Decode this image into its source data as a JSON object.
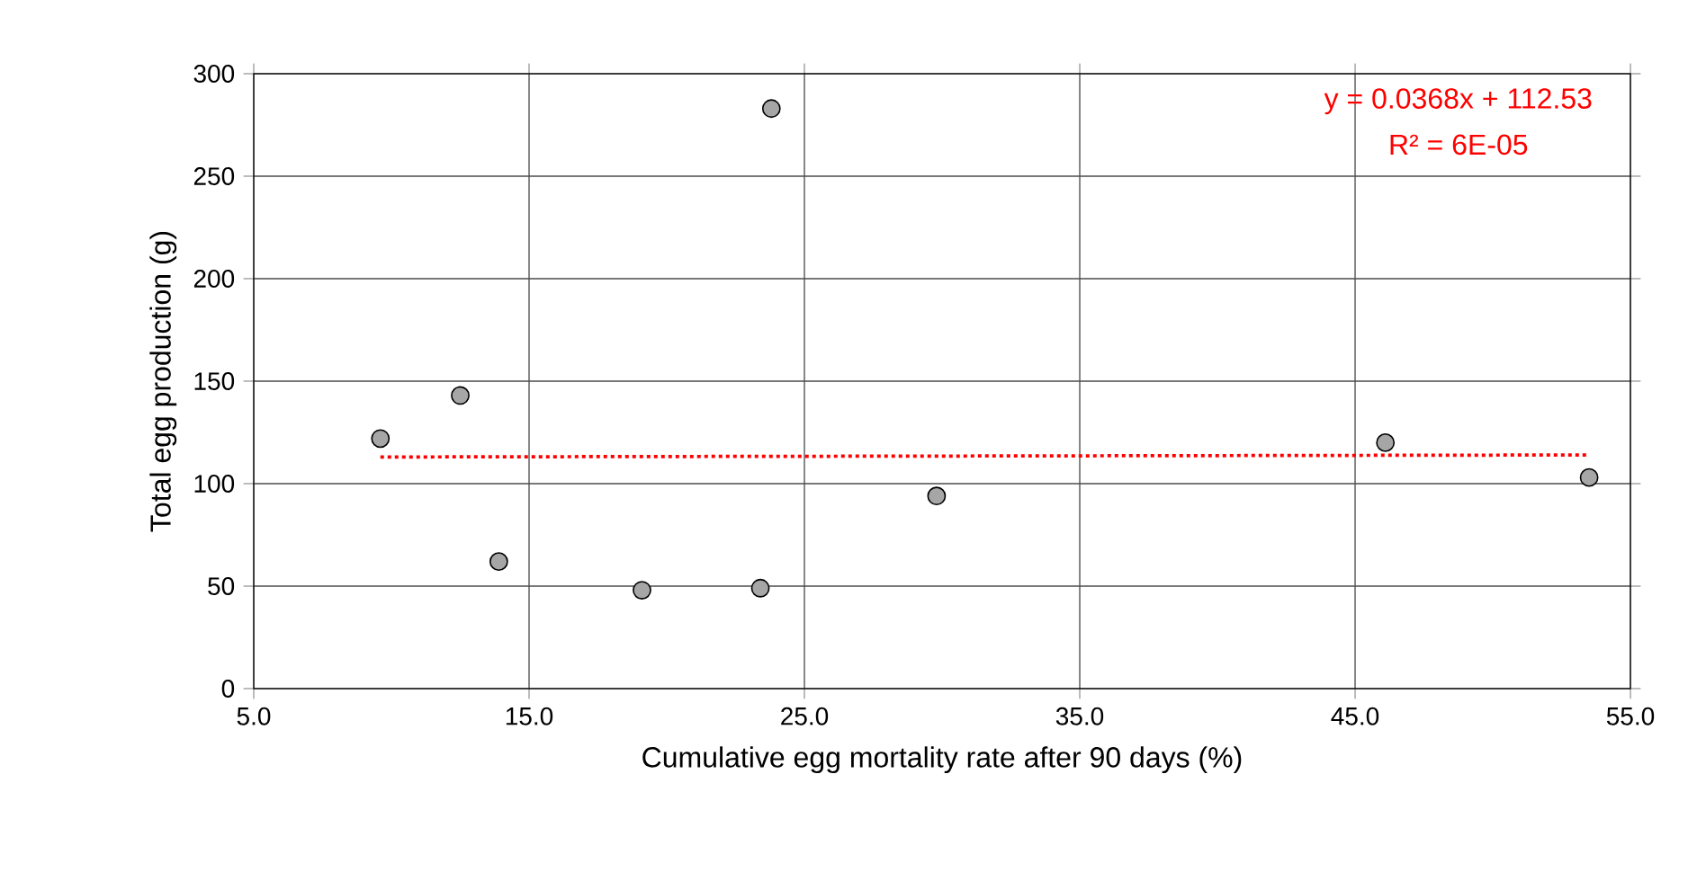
{
  "chart_data": {
    "type": "scatter",
    "xlabel": "Cumulative egg mortality rate after 90 days (%)",
    "ylabel": "Total egg production  (g)",
    "xlim": [
      5,
      55
    ],
    "ylim": [
      0,
      300
    ],
    "xticks": [
      {
        "value": 5,
        "label": "5.0"
      },
      {
        "value": 15,
        "label": "15.0"
      },
      {
        "value": 25,
        "label": "25.0"
      },
      {
        "value": 35,
        "label": "35.0"
      },
      {
        "value": 45,
        "label": "45.0"
      },
      {
        "value": 55,
        "label": "55.0"
      }
    ],
    "yticks": [
      0,
      50,
      100,
      150,
      200,
      250,
      300
    ],
    "grid": true,
    "series": [
      {
        "color": "#a6a6a6",
        "marker": "circle",
        "x": [
          9.6,
          12.5,
          13.9,
          19.1,
          23.4,
          23.8,
          29.8,
          46.1,
          53.5
        ],
        "values": [
          122,
          143,
          62,
          48,
          49,
          283,
          94,
          120,
          103
        ]
      },
      {
        "type": "line",
        "color": "#ff0000",
        "line_style": "dotted",
        "marker": "none",
        "x": [
          9.6,
          53.5
        ],
        "values": [
          113,
          114
        ]
      }
    ],
    "annotations": [
      "y = 0.0368x + 112.53",
      "R² = 6E-05"
    ]
  }
}
